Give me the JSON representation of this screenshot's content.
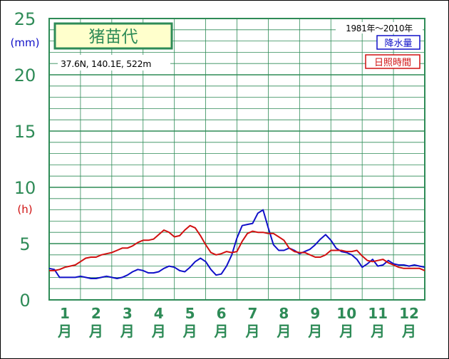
{
  "station": {
    "name": "猪苗代",
    "info": "37.6N,  140.1E,  522m",
    "period": "1981年～2010年"
  },
  "legend": {
    "precip_label": "降水量",
    "sun_label": "日照時間"
  },
  "axis": {
    "unit_mm": "(mm)",
    "unit_h": "(h)",
    "month_suffix": "月"
  },
  "colors": {
    "grid": "#2e8b57",
    "axis_text": "#2e8b57",
    "precip": "#1010c8",
    "sunshine": "#d01010",
    "title_bg": "#ffffcc"
  },
  "chart_data": {
    "type": "line",
    "x_unit": "half-month (1 = early January)",
    "x": [
      1,
      2,
      3,
      4,
      5,
      6,
      7,
      8,
      9,
      10,
      11,
      12,
      13,
      14,
      15,
      16,
      17,
      18,
      19,
      20,
      21,
      22,
      23,
      24,
      25,
      26,
      27,
      28,
      29,
      30,
      31,
      32,
      33,
      34,
      35,
      36,
      37,
      38,
      39,
      40,
      41,
      42,
      43,
      44,
      45,
      46,
      47,
      48,
      49,
      50,
      51,
      52,
      53,
      54,
      55,
      56,
      57,
      58,
      59,
      60,
      61,
      62,
      63,
      64,
      65,
      66,
      67,
      68,
      69,
      70,
      71,
      72,
      73
    ],
    "categories": [
      "1",
      "2",
      "3",
      "4",
      "5",
      "6",
      "7",
      "8",
      "9",
      "10",
      "11",
      "12"
    ],
    "ylim": [
      0,
      25
    ],
    "yticks": [
      0,
      5,
      10,
      15,
      20,
      25
    ],
    "series": [
      {
        "name": "降水量",
        "values": [
          2.8,
          2.7,
          2.0,
          2.0,
          2.0,
          2.0,
          2.1,
          2.0,
          1.9,
          1.9,
          2.0,
          2.1,
          2.0,
          1.9,
          2.0,
          2.2,
          2.5,
          2.7,
          2.6,
          2.4,
          2.4,
          2.5,
          2.8,
          3.0,
          2.9,
          2.6,
          2.5,
          2.9,
          3.4,
          3.7,
          3.4,
          2.7,
          2.2,
          2.3,
          3.0,
          4.0,
          5.5,
          6.6,
          6.7,
          6.8,
          7.7,
          8.0,
          6.4,
          4.9,
          4.4,
          4.4,
          4.6,
          4.4,
          4.1,
          4.3,
          4.5,
          4.9,
          5.4,
          5.8,
          5.3,
          4.6,
          4.3,
          4.2,
          4.0,
          3.6,
          2.9,
          3.2,
          3.6,
          3.0,
          3.1,
          3.5,
          3.2,
          3.1,
          3.1,
          3.0,
          3.1,
          3.0,
          2.9
        ]
      },
      {
        "name": "日照時間",
        "values": [
          2.6,
          2.6,
          2.7,
          2.9,
          3.0,
          3.1,
          3.4,
          3.7,
          3.8,
          3.8,
          4.0,
          4.1,
          4.2,
          4.4,
          4.6,
          4.6,
          4.8,
          5.1,
          5.3,
          5.3,
          5.4,
          5.8,
          6.2,
          6.0,
          5.6,
          5.7,
          6.2,
          6.6,
          6.4,
          5.7,
          4.9,
          4.2,
          4.0,
          4.1,
          4.3,
          4.2,
          4.3,
          5.2,
          5.9,
          6.1,
          6.0,
          6.0,
          5.9,
          5.9,
          5.6,
          5.3,
          4.6,
          4.3,
          4.2,
          4.2,
          4.0,
          3.8,
          3.8,
          4.0,
          4.4,
          4.4,
          4.4,
          4.3,
          4.3,
          4.4,
          3.9,
          3.5,
          3.4,
          3.5,
          3.6,
          3.3,
          3.1,
          2.9,
          2.8,
          2.8,
          2.8,
          2.8,
          2.6
        ]
      }
    ]
  }
}
